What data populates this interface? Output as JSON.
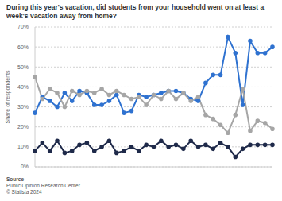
{
  "chart_data": {
    "type": "line",
    "title": "During this year's vacation, did students from your household went on at least a week's vacation away from home?",
    "y_label": "Share of respondents",
    "source_label": "Source",
    "source": "Public Opinion Research Center",
    "credit": "© Statista 2024",
    "categories": [
      null,
      null,
      null,
      null,
      null,
      null,
      null,
      null,
      null,
      null,
      null,
      null,
      null,
      null,
      null,
      null,
      null,
      null,
      null,
      null,
      null,
      null,
      null,
      null,
      null,
      null,
      null,
      null,
      null,
      null,
      null,
      null,
      null
    ],
    "series": [
      {
        "color": "#2f72d0",
        "marker": "circle",
        "values": [
          27,
          35,
          33,
          30,
          37,
          33,
          38,
          37,
          31,
          31,
          33,
          36,
          27,
          28,
          36,
          35,
          36,
          37,
          38,
          38,
          37,
          34,
          33,
          42,
          46,
          46,
          65,
          57,
          31,
          63,
          57,
          57,
          60
        ]
      },
      {
        "color": "#a6a6a6",
        "marker": "circle",
        "values": [
          45,
          34,
          39,
          37,
          30,
          38,
          36,
          38,
          37,
          39,
          36,
          38,
          36,
          34,
          35,
          31,
          36,
          34,
          38,
          34,
          37,
          33,
          35,
          26,
          24,
          21,
          17,
          26,
          39,
          18,
          23,
          22,
          19
        ]
      },
      {
        "color": "#1f2a4a",
        "marker": "circle",
        "values": [
          8,
          12,
          8,
          13,
          7,
          8,
          11,
          12,
          8,
          10,
          13,
          7,
          8,
          10,
          8,
          11,
          10,
          13,
          10,
          11,
          9,
          13,
          10,
          11,
          9,
          12,
          10,
          5,
          9,
          11,
          11,
          11,
          11
        ]
      }
    ],
    "ylim": [
      0,
      70
    ],
    "yticks": [
      {
        "value": 0,
        "label": "0%"
      },
      {
        "value": 10,
        "label": "10%"
      },
      {
        "value": 20,
        "label": "20%"
      },
      {
        "value": 30,
        "label": "30%"
      },
      {
        "value": 40,
        "label": "40%"
      },
      {
        "value": 50,
        "label": "50%"
      },
      {
        "value": 60,
        "label": "60%"
      },
      {
        "value": 70,
        "label": "70%"
      }
    ],
    "grid": true,
    "tick_labels": "y"
  }
}
